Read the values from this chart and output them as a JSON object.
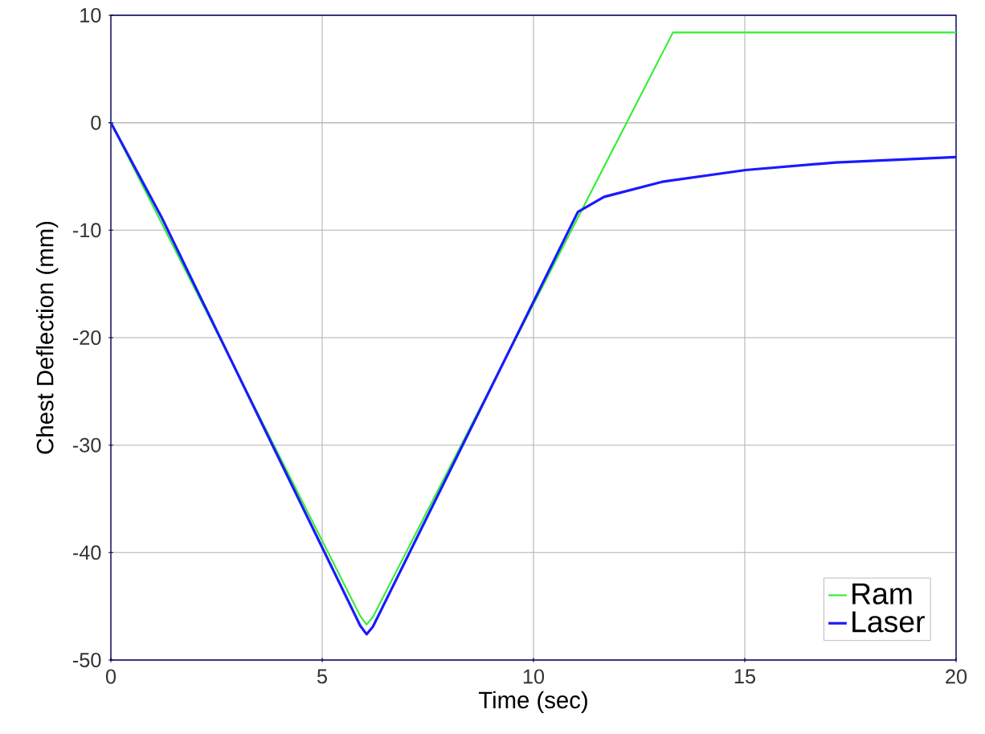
{
  "chart_data": {
    "type": "line",
    "xlabel": "Time (sec)",
    "ylabel": "Chest Deflection (mm)",
    "xlim": [
      0,
      20
    ],
    "ylim": [
      -50,
      10
    ],
    "xticks": [
      0,
      5,
      10,
      15,
      20
    ],
    "yticks": [
      -50,
      -40,
      -30,
      -20,
      -10,
      0,
      10
    ],
    "grid": true,
    "legend": "bottom right",
    "line_style": "solid",
    "marker": "none",
    "series": [
      {
        "name": "Ram",
        "color": "#33ee33",
        "x": [
          0,
          5.9,
          6.05,
          6.2,
          13.3,
          20
        ],
        "values": [
          0,
          -45.9,
          -46.7,
          -46.0,
          8.4,
          8.4
        ]
      },
      {
        "name": "Laser",
        "color": "#1a1aff",
        "x": [
          0,
          1.2,
          5.9,
          6.05,
          6.2,
          11.05,
          11.67,
          13.04,
          15.02,
          17.15,
          20
        ],
        "values": [
          0,
          -8.8,
          -46.8,
          -47.6,
          -46.9,
          -8.3,
          -6.9,
          -5.5,
          -4.4,
          -3.7,
          -3.2
        ]
      }
    ]
  }
}
